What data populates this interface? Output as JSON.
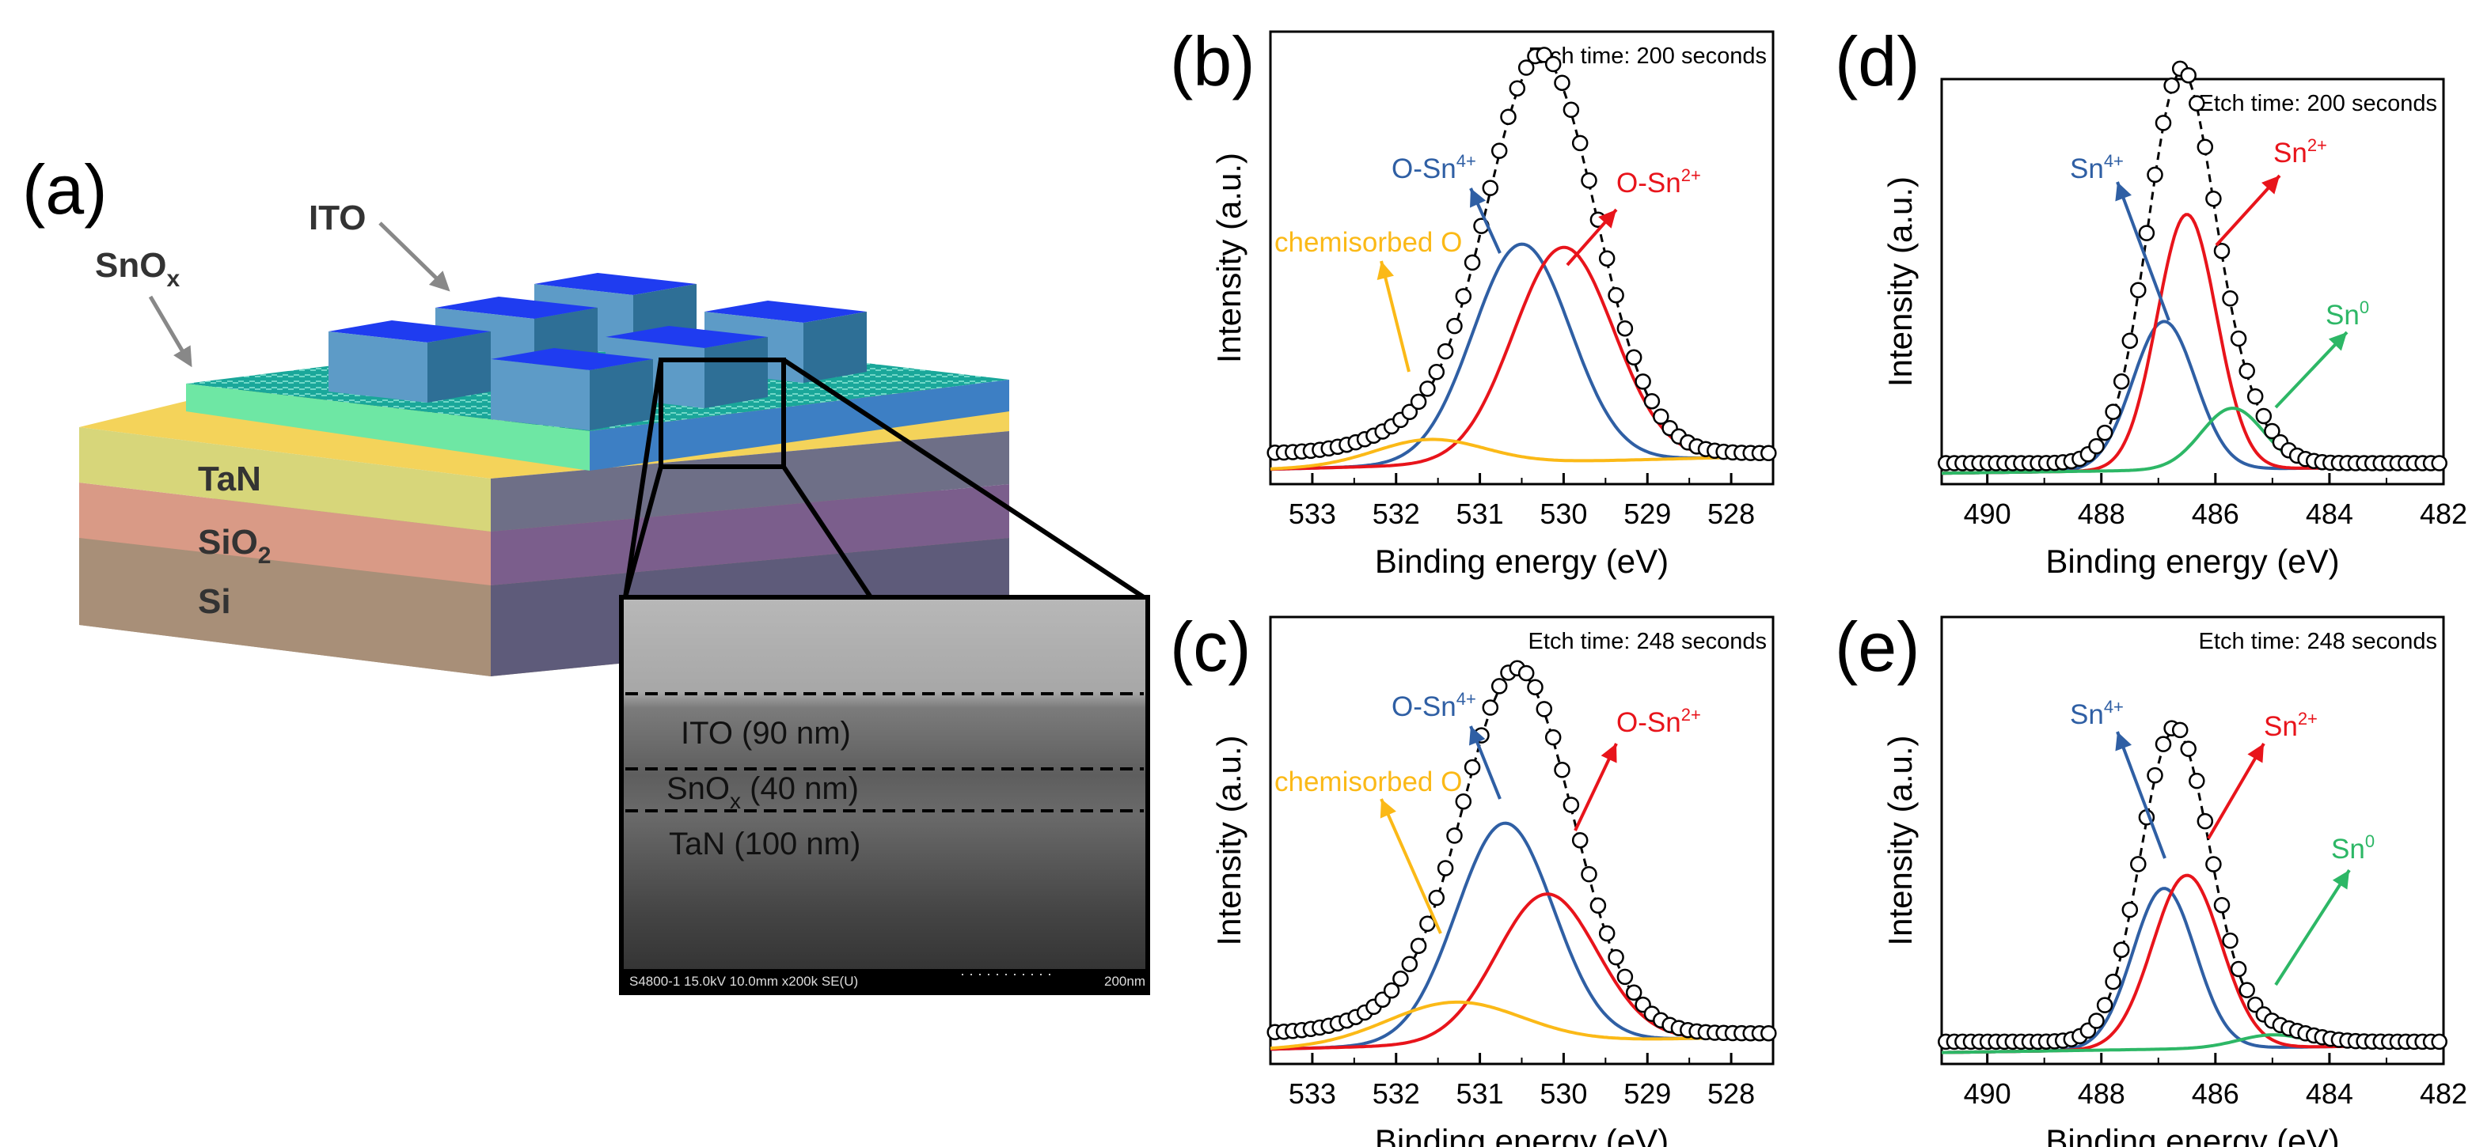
{
  "panel_a": {
    "label": "(a)",
    "callouts": {
      "ito": "ITO",
      "snox_base": "SnO",
      "snox_sub": "x"
    },
    "layers": {
      "tan": "TaN",
      "sio2_base": "SiO",
      "sio2_sub": "2",
      "si": "Si"
    },
    "sem": {
      "ito": "ITO (90 nm)",
      "snox_base": "SnO",
      "snox_sub": "x",
      "snox_rest": " (40 nm)",
      "tan": "TaN (100 nm)",
      "footer_left": "S4800-1 15.0kV 10.0mm x200k SE(U)",
      "footer_right": "200nm"
    }
  },
  "colors": {
    "peak_o_sn4": "#2f5fa4",
    "peak_o_sn2": "#e8141b",
    "chemisorbed": "#fbb917",
    "sn0": "#2db766",
    "envelope": "#000000"
  },
  "chart_data": [
    {
      "panel": "(b)",
      "type": "line",
      "etch_label": "Etch time: 200 seconds",
      "xlabel": "Binding energy (eV)",
      "ylabel": "Intensity (a.u.)",
      "xlim": [
        533.5,
        527.5
      ],
      "xticks": [
        533,
        532,
        531,
        530,
        529,
        528
      ],
      "ylim": [
        0,
        1
      ],
      "series": [
        {
          "name": "O-Sn4+",
          "label_base": "O-Sn",
          "label_sup": "4+",
          "color_key": "peak_o_sn4",
          "center": 530.5,
          "height": 0.51,
          "sigma": 0.58
        },
        {
          "name": "O-Sn2+",
          "label_base": "O-Sn",
          "label_sup": "2+",
          "color_key": "peak_o_sn2",
          "center": 530.0,
          "height": 0.5,
          "sigma": 0.6
        },
        {
          "name": "chemisorbed O",
          "label_base": "chemisorbed O",
          "label_sup": "",
          "color_key": "chemisorbed",
          "center": 531.6,
          "height": 0.06,
          "sigma": 0.65
        }
      ],
      "baseline": 0.05,
      "envelope_points": 56
    },
    {
      "panel": "(c)",
      "type": "line",
      "etch_label": "Etch time: 248 seconds",
      "xlabel": "Binding energy (eV)",
      "ylabel": "Intensity (a.u.)",
      "xlim": [
        533.5,
        527.5
      ],
      "xticks": [
        533,
        532,
        531,
        530,
        529,
        528
      ],
      "ylim": [
        0,
        1
      ],
      "series": [
        {
          "name": "O-Sn4+",
          "label_base": "O-Sn",
          "label_sup": "4+",
          "color_key": "peak_o_sn4",
          "center": 530.7,
          "height": 0.52,
          "sigma": 0.58
        },
        {
          "name": "O-Sn2+",
          "label_base": "O-Sn",
          "label_sup": "2+",
          "color_key": "peak_o_sn2",
          "center": 530.2,
          "height": 0.35,
          "sigma": 0.6
        },
        {
          "name": "chemisorbed O",
          "label_base": "chemisorbed O",
          "label_sup": "",
          "color_key": "chemisorbed",
          "center": 531.3,
          "height": 0.1,
          "sigma": 0.8
        }
      ],
      "baseline": 0.05,
      "envelope_points": 56
    },
    {
      "panel": "(d)",
      "type": "line",
      "etch_label": "Etch time: 200 seconds",
      "xlabel": "Binding energy (eV)",
      "ylabel": "Intensity (a.u.)",
      "xlim": [
        490.8,
        482
      ],
      "xticks": [
        490,
        488,
        486,
        484,
        482
      ],
      "ylim": [
        0,
        1
      ],
      "series": [
        {
          "name": "Sn4+",
          "label_base": "Sn",
          "label_sup": "4+",
          "color_key": "peak_o_sn4",
          "center": 486.9,
          "height": 0.39,
          "sigma": 0.55
        },
        {
          "name": "Sn2+",
          "label_base": "Sn",
          "label_sup": "2+",
          "color_key": "peak_o_sn2",
          "center": 486.5,
          "height": 0.67,
          "sigma": 0.52
        },
        {
          "name": "Sn0",
          "label_base": "Sn",
          "label_sup": "0",
          "color_key": "sn0",
          "center": 485.7,
          "height": 0.16,
          "sigma": 0.55
        }
      ],
      "baseline": 0.03,
      "envelope_points": 60
    },
    {
      "panel": "(e)",
      "type": "line",
      "etch_label": "Etch time: 248 seconds",
      "xlabel": "Binding energy (eV)",
      "ylabel": "Intensity (a.u.)",
      "xlim": [
        490.8,
        482
      ],
      "xticks": [
        490,
        488,
        486,
        484,
        482
      ],
      "ylim": [
        0,
        1
      ],
      "series": [
        {
          "name": "Sn4+",
          "label_base": "Sn",
          "label_sup": "4+",
          "color_key": "peak_o_sn4",
          "center": 486.9,
          "height": 0.38,
          "sigma": 0.55
        },
        {
          "name": "Sn2+",
          "label_base": "Sn",
          "label_sup": "2+",
          "color_key": "peak_o_sn2",
          "center": 486.5,
          "height": 0.41,
          "sigma": 0.6
        },
        {
          "name": "Sn0",
          "label_base": "Sn",
          "label_sup": "0",
          "color_key": "sn0",
          "center": 485.0,
          "height": 0.03,
          "sigma": 0.6
        }
      ],
      "baseline": 0.03,
      "envelope_points": 60
    }
  ]
}
